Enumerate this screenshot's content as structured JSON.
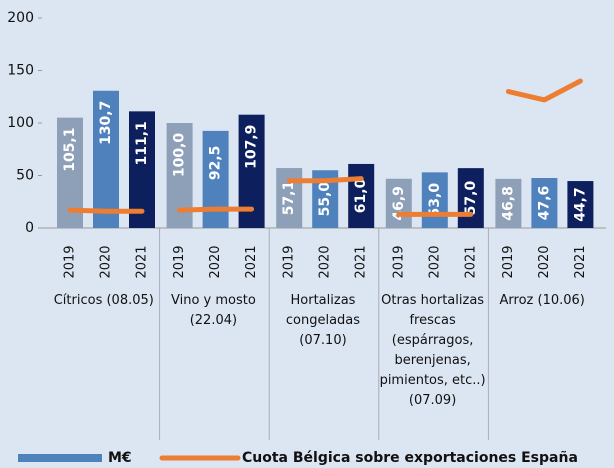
{
  "chart_data": {
    "type": "bar",
    "categories": [
      "Cítricos (08.05)",
      "Vino y mosto (22.04)",
      "Hortalizas congeladas (07.10)",
      "Otras hortalizas frescas (espárragos, berenjenas, pimientos, etc..) (07.09)",
      "Arroz (10.06)"
    ],
    "x_labels": [
      "2019",
      "2020",
      "2021"
    ],
    "ylim": [
      0,
      200
    ],
    "yticks": [
      0,
      50,
      100,
      150,
      200
    ],
    "series": [
      {
        "name": "M€",
        "type": "bar",
        "color": "#4f81bd",
        "year_colors": [
          "#8ea0b8",
          "#4f81bd",
          "#0d1f5c"
        ],
        "values": [
          [
            105.1,
            130.7,
            111.1
          ],
          [
            100.0,
            92.5,
            107.9
          ],
          [
            57.1,
            55.0,
            61.0
          ],
          [
            46.9,
            53.0,
            57.0
          ],
          [
            46.8,
            47.6,
            44.7
          ]
        ],
        "value_labels": [
          [
            "105,1",
            "130,7",
            "111,1"
          ],
          [
            "100,0",
            "92,5",
            "107,9"
          ],
          [
            "57,1",
            "55,0",
            "61,0"
          ],
          [
            "46,9",
            "53,0",
            "57,0"
          ],
          [
            "46,8",
            "47,6",
            "44,7"
          ]
        ]
      },
      {
        "name": "Cuota Bélgica sobre exportaciones España",
        "type": "line",
        "color": "#ed7d31",
        "values": [
          [
            17,
            16,
            16
          ],
          [
            17,
            18,
            18
          ],
          [
            45,
            45,
            47
          ],
          [
            13,
            13,
            13
          ],
          [
            130,
            122,
            140
          ]
        ]
      }
    ]
  }
}
